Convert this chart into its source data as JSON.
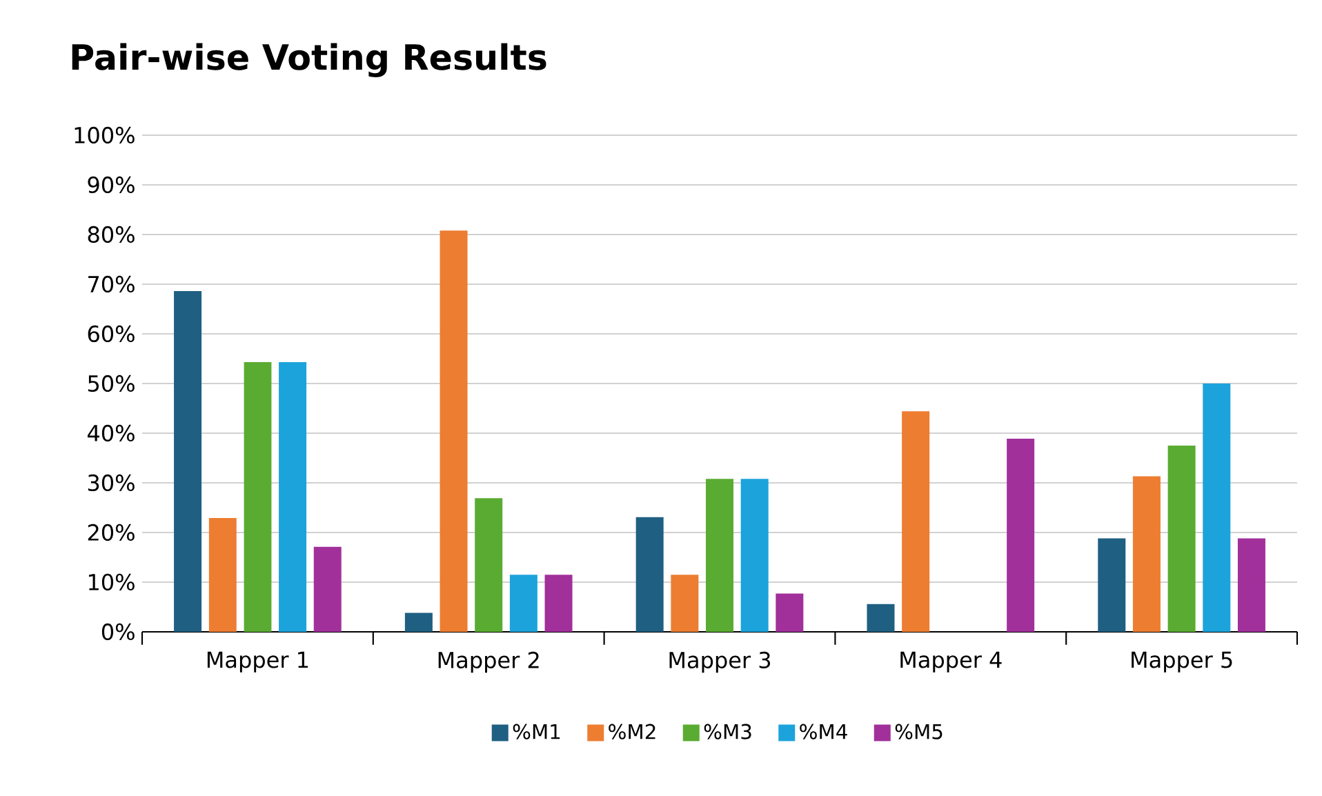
{
  "chart_data": {
    "type": "bar",
    "title": "Pair-wise Voting Results",
    "categories": [
      "Mapper 1",
      "Mapper 2",
      "Mapper 3",
      "Mapper 4",
      "Mapper 5"
    ],
    "series": [
      {
        "name": "%M1",
        "color": "#1f5f82",
        "values": [
          68.6,
          3.8,
          23.1,
          5.6,
          18.8
        ]
      },
      {
        "name": "%M2",
        "color": "#ed7d31",
        "values": [
          22.9,
          80.8,
          11.5,
          44.4,
          31.3
        ]
      },
      {
        "name": "%M3",
        "color": "#5aab32",
        "values": [
          54.3,
          26.9,
          30.8,
          0,
          37.5
        ]
      },
      {
        "name": "%M4",
        "color": "#1ca3dc",
        "values": [
          54.3,
          11.5,
          30.8,
          0,
          50.0
        ]
      },
      {
        "name": "%M5",
        "color": "#a1309b",
        "values": [
          17.1,
          11.5,
          7.7,
          38.9,
          18.8
        ]
      }
    ],
    "ylim": [
      0,
      100
    ],
    "yticks": [
      {
        "value": 0,
        "label": "0%"
      },
      {
        "value": 10,
        "label": "10%"
      },
      {
        "value": 20,
        "label": "20%"
      },
      {
        "value": 30,
        "label": "30%"
      },
      {
        "value": 40,
        "label": "40%"
      },
      {
        "value": 50,
        "label": "50%"
      },
      {
        "value": 60,
        "label": "60%"
      },
      {
        "value": 70,
        "label": "70%"
      },
      {
        "value": 80,
        "label": "80%"
      },
      {
        "value": 90,
        "label": "90%"
      },
      {
        "value": 100,
        "label": "100%"
      }
    ],
    "grid": "y",
    "legend": "bottom"
  }
}
